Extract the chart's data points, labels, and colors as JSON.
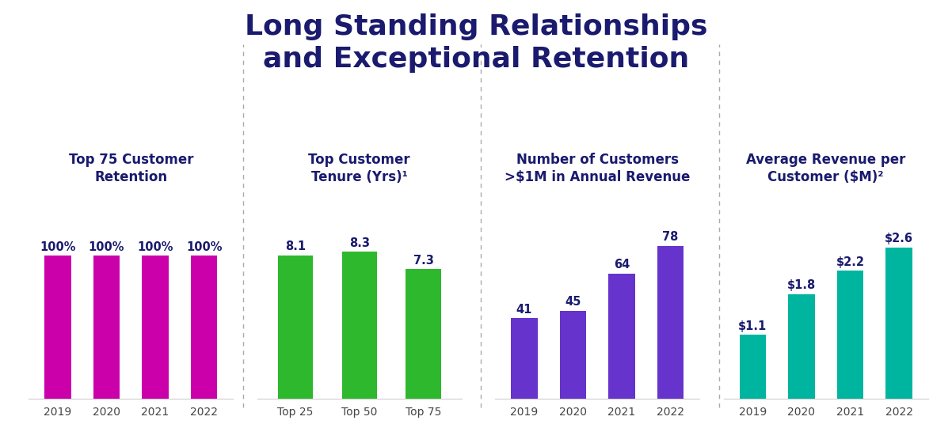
{
  "title_line1": "Long Standing Relationships",
  "title_line2": "and Exceptional Retention",
  "title_color": "#1a1a6e",
  "title_fontsize": 26,
  "background_color": "#ffffff",
  "chart1": {
    "subtitle": "Top 75 Customer\nRetention",
    "categories": [
      "2019",
      "2020",
      "2021",
      "2022"
    ],
    "values": [
      100,
      100,
      100,
      100
    ],
    "bar_color": "#cc00aa",
    "labels": [
      "100%",
      "100%",
      "100%",
      "100%"
    ],
    "ylim": [
      0,
      130
    ]
  },
  "chart2": {
    "subtitle": "Top Customer\nTenure (Yrs)¹",
    "categories": [
      "Top 25",
      "Top 50",
      "Top 75"
    ],
    "values": [
      8.1,
      8.3,
      7.3
    ],
    "bar_color": "#2db82d",
    "labels": [
      "8.1",
      "8.3",
      "7.3"
    ],
    "ylim": [
      0,
      10.5
    ]
  },
  "chart3": {
    "subtitle": "Number of Customers\n>$1M in Annual Revenue",
    "categories": [
      "2019",
      "2020",
      "2021",
      "2022"
    ],
    "values": [
      41,
      45,
      64,
      78
    ],
    "bar_color": "#6633cc",
    "labels": [
      "41",
      "45",
      "64",
      "78"
    ],
    "ylim": [
      0,
      95
    ]
  },
  "chart4": {
    "subtitle": "Average Revenue per\nCustomer ($M)²",
    "categories": [
      "2019",
      "2020",
      "2021",
      "2022"
    ],
    "values": [
      1.1,
      1.8,
      2.2,
      2.6
    ],
    "bar_color": "#00b5a0",
    "labels": [
      "$1.1",
      "$1.8",
      "$2.2",
      "$2.6"
    ],
    "ylim": [
      0,
      3.2
    ]
  },
  "divider_color": "#aaaaaa",
  "label_fontsize": 10.5,
  "subtitle_fontsize": 12,
  "tick_fontsize": 10,
  "label_color": "#1a1a6e"
}
